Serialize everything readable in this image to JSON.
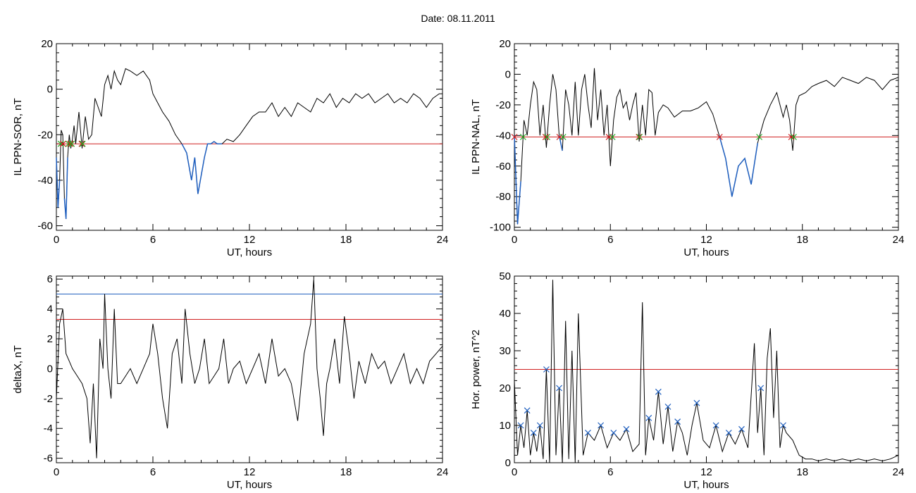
{
  "title": "Date:  08.11.2011",
  "colors": {
    "trace": "#000000",
    "highlight": "#1f5fbf",
    "red_line": "#d02020",
    "blue_line": "#1f5fbf",
    "green_mark": "#22aa22",
    "red_mark": "#cc1a1a",
    "blue_mark": "#1f5fbf"
  },
  "chart_data": [
    {
      "id": "ppn-sor",
      "type": "line",
      "xlabel": "UT, hours",
      "ylabel": "IL PPN-SOR, nT",
      "xlim": [
        0,
        24
      ],
      "ylim": [
        -62,
        20
      ],
      "xticks": [
        0,
        6,
        12,
        18,
        24
      ],
      "yticks": [
        -60,
        -40,
        -20,
        0,
        20
      ],
      "grid": false,
      "hlines": [
        {
          "y": -24,
          "color": "#d02020"
        }
      ],
      "series": [
        {
          "values_x": [
            0,
            0.1,
            0.2,
            0.3,
            0.4,
            0.5,
            0.6,
            0.7,
            0.8,
            0.9,
            1.0,
            1.1,
            1.2,
            1.4,
            1.6,
            1.8,
            2.0,
            2.2,
            2.4,
            2.6,
            2.8,
            3.0,
            3.2,
            3.4,
            3.6,
            3.8,
            4.0,
            4.3,
            4.6,
            5.0,
            5.4,
            5.8,
            6.0,
            6.3,
            6.6,
            7.0,
            7.4,
            7.8,
            8.1,
            8.4,
            8.6,
            8.8,
            9.0,
            9.2,
            9.4,
            9.6,
            9.8,
            10.0,
            10.3,
            10.6,
            11.0,
            11.4,
            11.8,
            12.2,
            12.6,
            13.0,
            13.4,
            13.8,
            14.2,
            14.6,
            15.0,
            15.4,
            15.8,
            16.2,
            16.6,
            17.0,
            17.4,
            17.8,
            18.2,
            18.6,
            19.0,
            19.4,
            19.8,
            20.2,
            20.6,
            21.0,
            21.4,
            21.8,
            22.2,
            22.6,
            23.0,
            23.4,
            23.8,
            24.0
          ],
          "values_y": [
            -30,
            -52,
            -40,
            -18,
            -20,
            -48,
            -57,
            -30,
            -20,
            -26,
            -22,
            -16,
            -24,
            -10,
            -26,
            -12,
            -22,
            -20,
            -4,
            -8,
            -12,
            2,
            6,
            0,
            8,
            4,
            2,
            9,
            8,
            6,
            8,
            4,
            -2,
            -6,
            -10,
            -14,
            -20,
            -24,
            -28,
            -40,
            -30,
            -46,
            -38,
            -30,
            -24,
            -24,
            -23,
            -24,
            -24,
            -22,
            -23,
            -20,
            -16,
            -12,
            -10,
            -10,
            -6,
            -12,
            -8,
            -12,
            -6,
            -8,
            -10,
            -4,
            -6,
            -2,
            -8,
            -4,
            -6,
            -2,
            -4,
            -2,
            -6,
            -4,
            -2,
            -6,
            -4,
            -6,
            -2,
            -4,
            -8,
            -4,
            -2,
            -2
          ]
        }
      ]
    },
    {
      "id": "ppn-nal",
      "type": "line",
      "xlabel": "UT, hours",
      "ylabel": "IL PPN-NAL, nT",
      "xlim": [
        0,
        24
      ],
      "ylim": [
        -102,
        20
      ],
      "xticks": [
        0,
        6,
        12,
        18,
        24
      ],
      "yticks": [
        -100,
        -80,
        -60,
        -40,
        -20,
        0,
        20
      ],
      "grid": false,
      "hlines": [
        {
          "y": -41,
          "color": "#d02020"
        }
      ],
      "series": [
        {
          "values_x": [
            0,
            0.2,
            0.4,
            0.6,
            0.8,
            1.0,
            1.2,
            1.4,
            1.6,
            1.8,
            2.0,
            2.2,
            2.4,
            2.6,
            2.8,
            3.0,
            3.2,
            3.4,
            3.6,
            3.8,
            4.0,
            4.2,
            4.4,
            4.6,
            4.8,
            5.0,
            5.2,
            5.4,
            5.6,
            5.8,
            6.0,
            6.2,
            6.4,
            6.6,
            6.8,
            7.0,
            7.2,
            7.4,
            7.6,
            7.8,
            8.0,
            8.2,
            8.4,
            8.6,
            8.8,
            9.0,
            9.3,
            9.6,
            10.0,
            10.5,
            11.0,
            11.5,
            12.0,
            12.4,
            12.8,
            13.2,
            13.6,
            14.0,
            14.4,
            14.8,
            15.2,
            15.6,
            16.0,
            16.4,
            16.8,
            17.0,
            17.2,
            17.4,
            17.6,
            17.8,
            18.2,
            18.6,
            19.0,
            19.5,
            20.0,
            20.5,
            21.0,
            21.5,
            22.0,
            22.5,
            23.0,
            23.5,
            24.0
          ],
          "values_y": [
            -40,
            -98,
            -70,
            -30,
            -40,
            -20,
            -5,
            -10,
            -40,
            -20,
            -48,
            -20,
            0,
            -10,
            -40,
            -50,
            -10,
            -20,
            -40,
            -5,
            -40,
            -10,
            0,
            -20,
            -35,
            4,
            -30,
            -10,
            -40,
            -20,
            -60,
            -30,
            -15,
            -10,
            -22,
            -18,
            -30,
            -20,
            -12,
            -44,
            -20,
            -40,
            -10,
            -12,
            -40,
            -25,
            -20,
            -22,
            -28,
            -24,
            -24,
            -22,
            -18,
            -26,
            -40,
            -55,
            -80,
            -60,
            -55,
            -72,
            -45,
            -30,
            -20,
            -12,
            -28,
            -20,
            -30,
            -50,
            -20,
            -14,
            -12,
            -8,
            -6,
            -4,
            -8,
            -2,
            -4,
            -6,
            -2,
            -4,
            -10,
            -4,
            -2
          ]
        }
      ]
    },
    {
      "id": "deltax",
      "type": "line",
      "xlabel": "UT, hours",
      "ylabel": "deltaX, nT",
      "xlim": [
        0,
        24
      ],
      "ylim": [
        -6.3,
        6.2
      ],
      "xticks": [
        0,
        6,
        12,
        18,
        24
      ],
      "yticks": [
        -6,
        -4,
        -2,
        0,
        2,
        4,
        6
      ],
      "grid": false,
      "hlines": [
        {
          "y": 5.0,
          "color": "#1f5fbf"
        },
        {
          "y": 3.3,
          "color": "#d02020"
        }
      ],
      "series": [
        {
          "values_x": [
            0,
            0.2,
            0.4,
            0.6,
            0.8,
            1.0,
            1.3,
            1.6,
            1.9,
            2.1,
            2.3,
            2.5,
            2.7,
            2.9,
            3.0,
            3.2,
            3.4,
            3.6,
            3.8,
            4.0,
            4.3,
            4.6,
            5.0,
            5.4,
            5.8,
            6.0,
            6.3,
            6.6,
            6.9,
            7.2,
            7.5,
            7.8,
            8.0,
            8.3,
            8.6,
            8.9,
            9.2,
            9.5,
            9.8,
            10.1,
            10.4,
            10.7,
            11.0,
            11.4,
            11.8,
            12.2,
            12.6,
            13.0,
            13.4,
            13.8,
            14.2,
            14.6,
            15.0,
            15.4,
            15.8,
            16.0,
            16.2,
            16.4,
            16.6,
            16.8,
            17.0,
            17.3,
            17.6,
            17.9,
            18.2,
            18.5,
            18.8,
            19.2,
            19.6,
            20.0,
            20.4,
            20.8,
            21.2,
            21.6,
            22.0,
            22.4,
            22.8,
            23.2,
            23.6,
            24.0
          ],
          "values_y": [
            -2,
            3,
            4,
            1,
            0.5,
            0,
            -0.5,
            -1,
            -2,
            -5,
            -1,
            -6,
            2,
            0,
            5,
            0,
            -2,
            4,
            -1,
            -1,
            -0.5,
            0,
            -1,
            0,
            1,
            3,
            1,
            -2,
            -4,
            1,
            2,
            -1,
            4,
            1,
            -1,
            0,
            2,
            -1,
            -0.5,
            0,
            2,
            -1,
            0,
            0.5,
            -1,
            0,
            1,
            -1,
            2,
            -0.5,
            0,
            -1,
            -3.5,
            1,
            3,
            6,
            0,
            -2,
            -4.5,
            -1,
            0,
            2,
            -1,
            3.5,
            1,
            -2,
            0.5,
            -1,
            1,
            0,
            0.5,
            -1,
            0,
            1,
            -1,
            0,
            -1,
            0.5,
            1,
            1.5
          ]
        }
      ]
    },
    {
      "id": "hor-power",
      "type": "line",
      "xlabel": "UT, hours",
      "ylabel": "Hor. power, nT^2",
      "xlim": [
        0,
        24
      ],
      "ylim": [
        0,
        50
      ],
      "xticks": [
        0,
        6,
        12,
        18,
        24
      ],
      "yticks": [
        0,
        10,
        20,
        30,
        40,
        50
      ],
      "grid": false,
      "hlines": [
        {
          "y": 25,
          "color": "#d02020"
        }
      ],
      "series": [
        {
          "values_x": [
            0,
            0.2,
            0.4,
            0.6,
            0.8,
            1.0,
            1.2,
            1.4,
            1.6,
            1.8,
            2.0,
            2.2,
            2.4,
            2.6,
            2.8,
            3.0,
            3.2,
            3.4,
            3.6,
            3.8,
            4.0,
            4.3,
            4.6,
            5.0,
            5.4,
            5.8,
            6.2,
            6.6,
            7.0,
            7.4,
            7.8,
            8.0,
            8.2,
            8.4,
            8.7,
            9.0,
            9.3,
            9.6,
            9.9,
            10.2,
            10.5,
            10.8,
            11.1,
            11.4,
            11.8,
            12.2,
            12.6,
            13.0,
            13.4,
            13.8,
            14.2,
            14.6,
            15.0,
            15.2,
            15.4,
            15.6,
            15.8,
            16.0,
            16.2,
            16.4,
            16.6,
            16.8,
            17.0,
            17.4,
            17.8,
            18.2,
            18.6,
            19.0,
            19.5,
            20.0,
            20.5,
            21.0,
            21.5,
            22.0,
            22.5,
            23.0,
            23.5,
            24.0
          ],
          "values_y": [
            22,
            2,
            10,
            4,
            14,
            2,
            8,
            3,
            10,
            1,
            25,
            0,
            49,
            2,
            20,
            0,
            38,
            1,
            30,
            0,
            40,
            2,
            8,
            6,
            10,
            4,
            8,
            6,
            9,
            3,
            5,
            43,
            2,
            12,
            6,
            19,
            5,
            15,
            3,
            11,
            8,
            2,
            10,
            16,
            6,
            4,
            10,
            3,
            8,
            5,
            9,
            4,
            32,
            8,
            20,
            2,
            28,
            36,
            12,
            30,
            4,
            10,
            8,
            6,
            2,
            1,
            1,
            0.5,
            1,
            0.5,
            1,
            0.5,
            1,
            0.5,
            1,
            0.5,
            1,
            2
          ]
        }
      ]
    }
  ]
}
